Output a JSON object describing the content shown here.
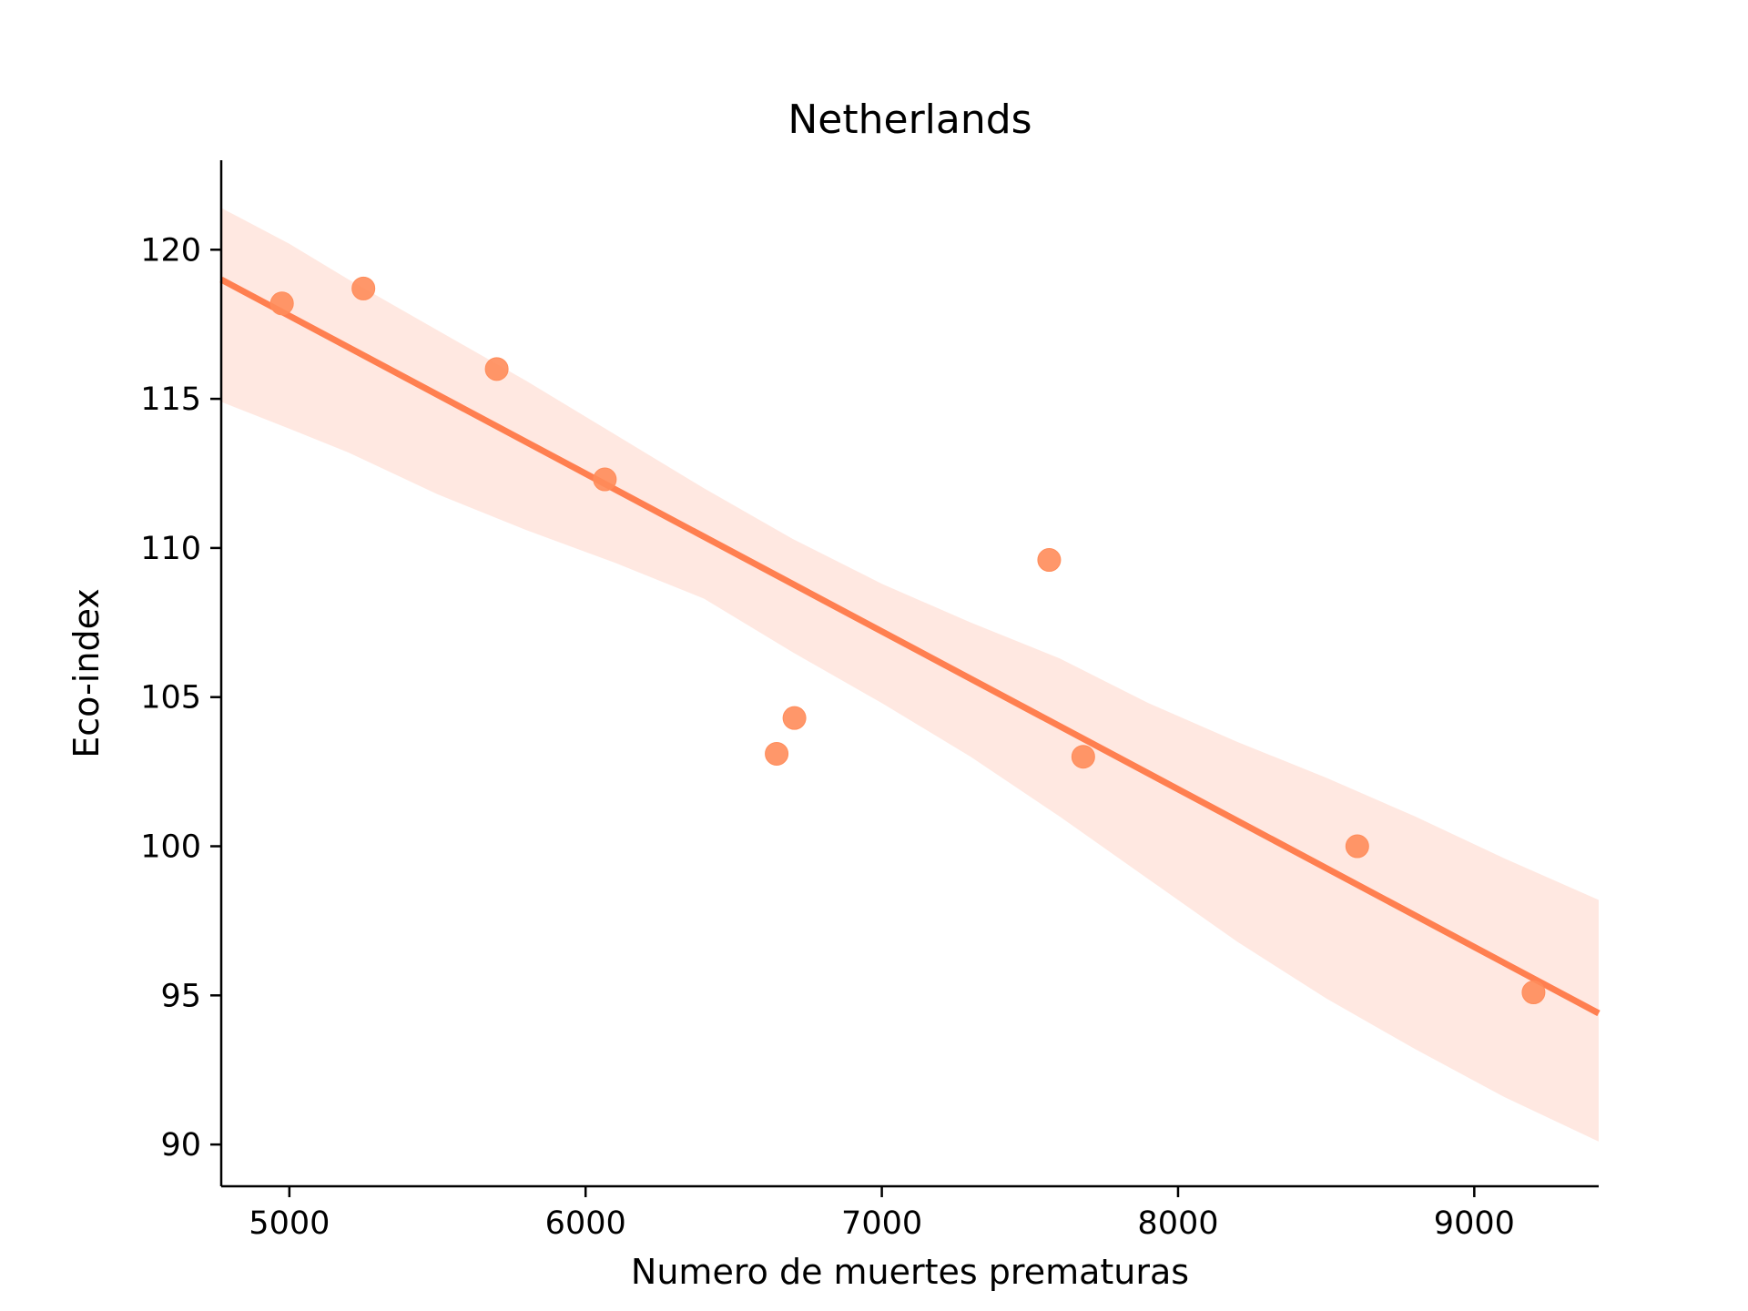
{
  "chart_data": {
    "type": "scatter",
    "title": "Netherlands",
    "xlabel": "Numero de muertes prematuras",
    "ylabel": "Eco-index",
    "xlim": [
      4770,
      9420
    ],
    "ylim": [
      88.6,
      123.0
    ],
    "xticks": [
      5000,
      6000,
      7000,
      8000,
      9000
    ],
    "yticks": [
      90,
      95,
      100,
      105,
      110,
      115,
      120
    ],
    "grid": false,
    "colors": {
      "point": "#ff8c5a",
      "line": "#ff7f50",
      "band": "#ffe4dc"
    },
    "points": [
      {
        "x": 4975,
        "y": 118.2
      },
      {
        "x": 5250,
        "y": 118.7
      },
      {
        "x": 5700,
        "y": 116.0
      },
      {
        "x": 6065,
        "y": 112.3
      },
      {
        "x": 6645,
        "y": 103.1
      },
      {
        "x": 6705,
        "y": 104.3
      },
      {
        "x": 7565,
        "y": 109.6
      },
      {
        "x": 7680,
        "y": 103.0
      },
      {
        "x": 8605,
        "y": 100.0
      },
      {
        "x": 9200,
        "y": 95.1
      }
    ],
    "regression_line": [
      {
        "x": 4770,
        "y": 119.0
      },
      {
        "x": 9420,
        "y": 94.4
      }
    ],
    "confidence_band": {
      "x": [
        4770,
        5000,
        5200,
        5500,
        5800,
        6100,
        6400,
        6700,
        7000,
        7300,
        7600,
        7900,
        8200,
        8500,
        8800,
        9100,
        9420
      ],
      "upper": [
        121.4,
        120.2,
        119.0,
        117.3,
        115.6,
        113.8,
        112.0,
        110.3,
        108.8,
        107.5,
        106.3,
        104.8,
        103.5,
        102.3,
        101.0,
        99.6,
        98.2
      ],
      "lower": [
        114.9,
        114.0,
        113.2,
        111.8,
        110.6,
        109.5,
        108.3,
        106.5,
        104.8,
        103.0,
        101.0,
        98.9,
        96.8,
        94.9,
        93.2,
        91.6,
        90.1
      ]
    }
  }
}
